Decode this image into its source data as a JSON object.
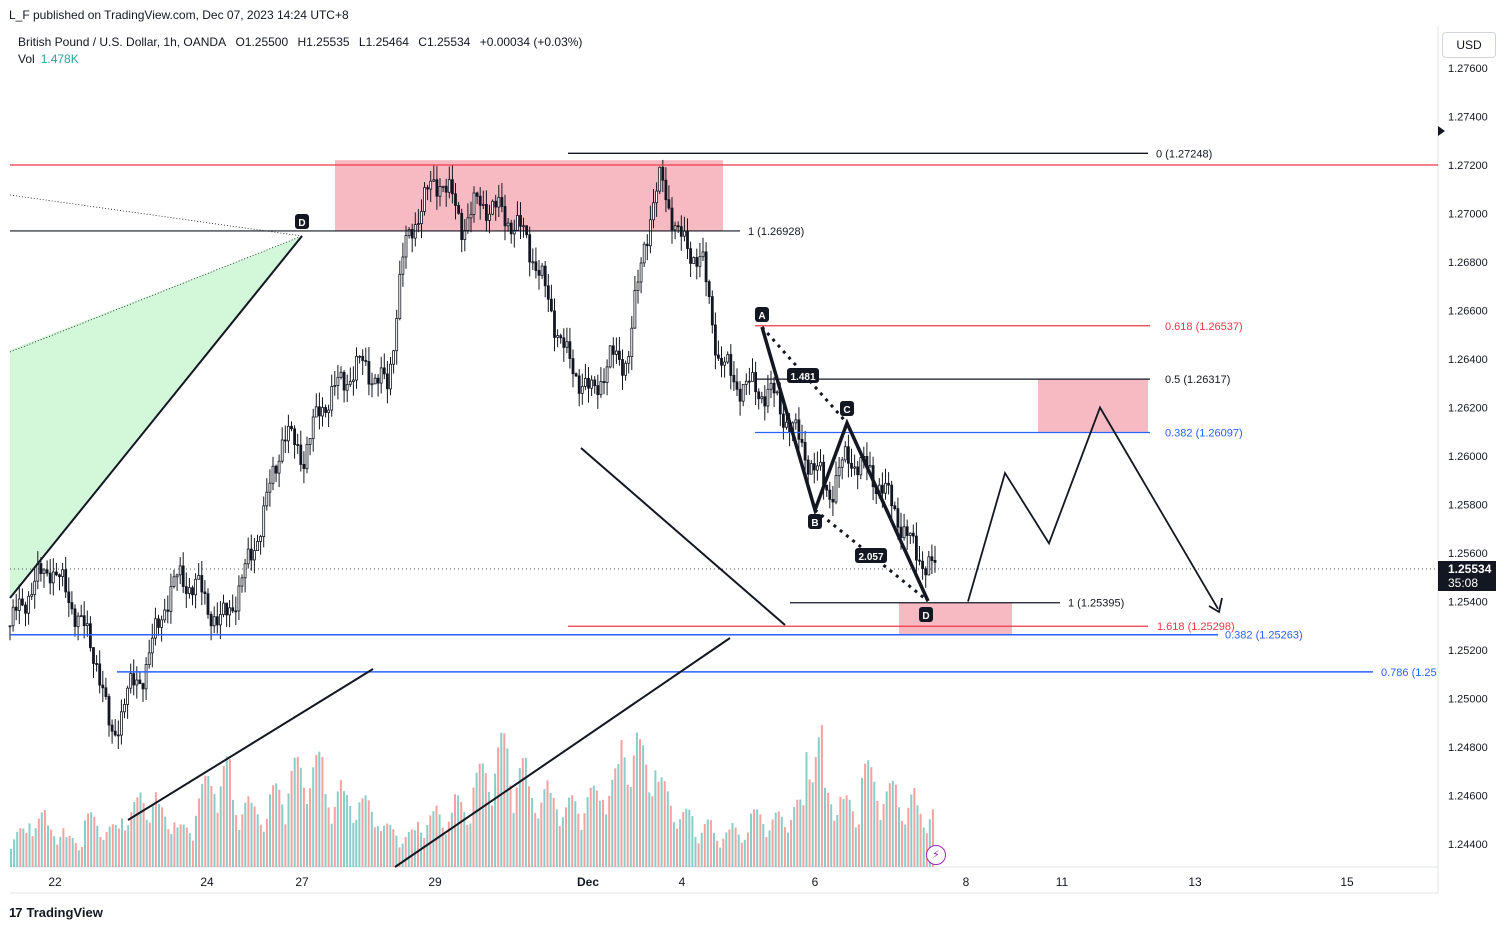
{
  "publisher_line": "L_F published on TradingView.com, Dec 07, 2023 14:24 UTC+8",
  "symbol": {
    "name": "British Pound / U.S. Dollar, 1h, OANDA",
    "open": "O1.25500",
    "high": "H1.25535",
    "low": "L1.25464",
    "close": "C1.25534",
    "change": "+0.00034 (+0.03%)"
  },
  "volume": {
    "label": "Vol",
    "value": "1.478K"
  },
  "currency_button": "USD",
  "current_price": {
    "value": "1.25534",
    "countdown": "35:08"
  },
  "footer": {
    "brand": "TradingView",
    "logo": "17"
  },
  "colors": {
    "bull": "#26a69a",
    "bear": "#ef5350",
    "red_line": "#f23645",
    "blue_line": "#2962ff",
    "zone": "#f7b3bb",
    "green_zone": "#c8f5cf",
    "ink": "#131722"
  },
  "chart_data": {
    "type": "candlestick",
    "title": "British Pound / U.S. Dollar, 1h, OANDA",
    "y_axis": {
      "ticks": [
        "1.27600",
        "1.27400",
        "1.27200",
        "1.27000",
        "1.26800",
        "1.26600",
        "1.26400",
        "1.26200",
        "1.26000",
        "1.25800",
        "1.25600",
        "1.25400",
        "1.25200",
        "1.25000",
        "1.24800",
        "1.24600",
        "1.24400"
      ],
      "range": [
        1.2435,
        1.2768
      ]
    },
    "x_axis": {
      "ticks": [
        {
          "label": "22",
          "bold": false
        },
        {
          "label": "24",
          "bold": false
        },
        {
          "label": "27",
          "bold": false
        },
        {
          "label": "29",
          "bold": false
        },
        {
          "label": "Dec",
          "bold": true
        },
        {
          "label": "4",
          "bold": false
        },
        {
          "label": "6",
          "bold": false
        },
        {
          "label": "8",
          "bold": false
        },
        {
          "label": "11",
          "bold": false
        },
        {
          "label": "13",
          "bold": false
        },
        {
          "label": "15",
          "bold": false
        }
      ]
    },
    "price_path": [
      [
        0,
        1.253
      ],
      [
        0.6,
        1.2545
      ],
      [
        1.2,
        1.2555
      ],
      [
        1.8,
        1.254
      ],
      [
        2.2,
        1.2528
      ],
      [
        2.6,
        1.2515
      ],
      [
        3.0,
        1.2482
      ],
      [
        3.4,
        1.25
      ],
      [
        4.0,
        1.2512
      ],
      [
        4.6,
        1.254
      ],
      [
        5.0,
        1.255
      ],
      [
        5.6,
        1.2545
      ],
      [
        6.2,
        1.253
      ],
      [
        6.8,
        1.2545
      ],
      [
        7.5,
        1.2575
      ],
      [
        8.1,
        1.261
      ],
      [
        8.7,
        1.26
      ],
      [
        9.2,
        1.262
      ],
      [
        9.8,
        1.263
      ],
      [
        10.4,
        1.2638
      ],
      [
        11.2,
        1.2628
      ],
      [
        11.6,
        1.268
      ],
      [
        12.2,
        1.2705
      ],
      [
        12.8,
        1.2715
      ],
      [
        13.4,
        1.2695
      ],
      [
        13.9,
        1.2705
      ],
      [
        14.6,
        1.27
      ],
      [
        15.3,
        1.269
      ],
      [
        15.8,
        1.267
      ],
      [
        16.5,
        1.264
      ],
      [
        17.2,
        1.2625
      ],
      [
        17.8,
        1.264
      ],
      [
        18.3,
        1.264
      ],
      [
        18.8,
        1.269
      ],
      [
        19.3,
        1.2715
      ],
      [
        19.8,
        1.269
      ],
      [
        20.5,
        1.268
      ],
      [
        21.0,
        1.264
      ],
      [
        21.5,
        1.263
      ],
      [
        22.0,
        1.2628
      ],
      [
        22.6,
        1.2625
      ],
      [
        23.3,
        1.2608
      ],
      [
        23.8,
        1.2595
      ],
      [
        24.3,
        1.2585
      ],
      [
        24.8,
        1.26
      ],
      [
        25.3,
        1.2595
      ],
      [
        25.8,
        1.2588
      ],
      [
        26.3,
        1.2575
      ],
      [
        26.8,
        1.256
      ],
      [
        27.4,
        1.2553
      ]
    ],
    "volume_profile": [
      0.25,
      0.4,
      0.3,
      0.2,
      0.35,
      0.3,
      0.45,
      0.5,
      0.4,
      0.3,
      0.6,
      0.7,
      0.5,
      0.45,
      0.55,
      0.7,
      0.8,
      0.6,
      0.5,
      0.45,
      0.3,
      0.25,
      0.35,
      0.4,
      0.5,
      0.7,
      0.85,
      0.75,
      0.6,
      0.5,
      0.45,
      0.55,
      0.7,
      0.9,
      0.8,
      0.6,
      0.4,
      0.3,
      0.25,
      0.3,
      0.4,
      0.35,
      0.45,
      1.0,
      0.55,
      0.45,
      0.7,
      0.6,
      0.5,
      0.4
    ],
    "levels": [
      {
        "label": "0 (1.27248)",
        "price": 1.27248,
        "color": "black"
      },
      {
        "label": "1 (1.26928)",
        "price": 1.26928,
        "color": "black"
      },
      {
        "label": "0.618 (1.26537)",
        "price": 1.26537,
        "color": "red"
      },
      {
        "label": "0.5 (1.26317)",
        "price": 1.26317,
        "color": "black"
      },
      {
        "label": "0.382 (1.26097)",
        "price": 1.26097,
        "color": "blue"
      },
      {
        "label": "1 (1.25395)",
        "price": 1.25395,
        "color": "black"
      },
      {
        "label": "1.618 (1.25298)",
        "price": 1.25298,
        "color": "red"
      },
      {
        "label": "0.382 (1.25263)",
        "price": 1.25263,
        "color": "blue"
      },
      {
        "label": "0.786 (1.25",
        "price": 1.2511,
        "color": "blue"
      }
    ],
    "horizontal_lines": [
      {
        "price": 1.272,
        "color": "red"
      },
      {
        "price": 1.26928,
        "color": "black"
      },
      {
        "price": 1.25263,
        "color": "blue"
      },
      {
        "price": 1.2511,
        "color": "blue"
      }
    ],
    "pattern_points": [
      {
        "label": "A",
        "price": 1.26537
      },
      {
        "label": "B",
        "price": 1.2578
      },
      {
        "label": "C",
        "price": 1.2615
      },
      {
        "label": "D",
        "price": 1.254
      }
    ],
    "left_pattern_point": {
      "label": "D",
      "price": 1.26928
    },
    "ratio_labels": [
      "1.481",
      "2.057"
    ],
    "projection_path": [
      1.254,
      1.2593,
      1.2564,
      1.262,
      1.2537
    ]
  }
}
